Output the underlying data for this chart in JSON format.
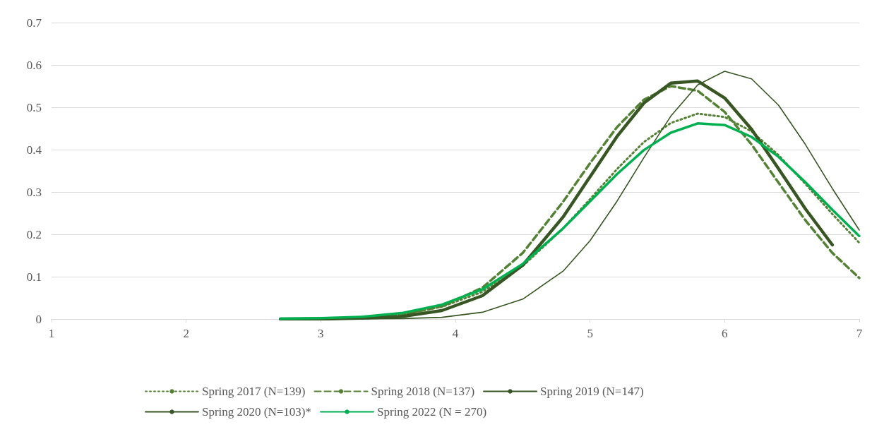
{
  "chart_data": {
    "type": "line",
    "xlim": [
      1,
      7
    ],
    "xticks": [
      1,
      2,
      3,
      4,
      5,
      6,
      7
    ],
    "ylim": [
      0,
      0.7
    ],
    "yticks": [
      0,
      0.1,
      0.2,
      0.3,
      0.4,
      0.5,
      0.6,
      0.7
    ],
    "grid": "y",
    "legend": "bottom",
    "marker": "none",
    "series": [
      {
        "name": "Spring 2017 (N=139)",
        "color": "#548235",
        "line_style": "dotted",
        "x": [
          2.7,
          3,
          3.3,
          3.6,
          3.9,
          4.2,
          4.5,
          4.8,
          5,
          5.2,
          5.4,
          5.6,
          5.8,
          6,
          6.2,
          6.4,
          6.6,
          6.8,
          7
        ],
        "values": [
          0,
          0.001,
          0.004,
          0.011,
          0.029,
          0.064,
          0.125,
          0.214,
          0.283,
          0.354,
          0.418,
          0.463,
          0.485,
          0.477,
          0.443,
          0.387,
          0.319,
          0.248,
          0.18
        ]
      },
      {
        "name": "Spring 2018 (N=137)",
        "color": "#548235",
        "line_style": "dashed",
        "x": [
          2.7,
          3,
          3.3,
          3.6,
          3.9,
          4.2,
          4.5,
          4.8,
          5,
          5.2,
          5.4,
          5.6,
          5.8,
          6,
          6.2,
          6.4,
          6.6,
          6.8,
          7
        ],
        "values": [
          0,
          0.001,
          0.003,
          0.01,
          0.03,
          0.074,
          0.156,
          0.277,
          0.368,
          0.453,
          0.518,
          0.55,
          0.539,
          0.489,
          0.412,
          0.322,
          0.233,
          0.156,
          0.097
        ]
      },
      {
        "name": "Spring 2019 (N=147)",
        "color": "#375623",
        "line_style": "solid",
        "x": [
          3,
          3.3,
          3.6,
          3.9,
          4.2,
          4.5,
          4.8,
          5,
          5.2,
          5.4,
          5.6,
          5.8,
          6,
          6.2,
          6.4,
          6.6,
          6.8,
          7
        ],
        "values": [
          0,
          0,
          0.001,
          0.004,
          0.016,
          0.047,
          0.113,
          0.185,
          0.278,
          0.381,
          0.479,
          0.553,
          0.585,
          0.567,
          0.505,
          0.412,
          0.308,
          0.21
        ]
      },
      {
        "name": "Spring 2020 (N=103)*",
        "color": "#375623",
        "line_style": "solid",
        "x": [
          2.7,
          3,
          3.3,
          3.6,
          3.9,
          4.2,
          4.5,
          4.8,
          5,
          5.2,
          5.4,
          5.6,
          5.8,
          6,
          6.2,
          6.4,
          6.6,
          6.8
        ],
        "values": [
          0,
          0,
          0.002,
          0.006,
          0.02,
          0.055,
          0.127,
          0.241,
          0.336,
          0.431,
          0.51,
          0.557,
          0.562,
          0.522,
          0.448,
          0.355,
          0.26,
          0.175
        ]
      },
      {
        "name": "Spring 2022 (N = 270)",
        "color": "#00b050",
        "line_style": "solid",
        "x": [
          2.7,
          3,
          3.3,
          3.6,
          3.9,
          4.2,
          4.5,
          4.8,
          5,
          5.2,
          5.4,
          5.6,
          5.8,
          6,
          6.2,
          6.4,
          6.6,
          6.8,
          7
        ],
        "values": [
          0.001,
          0.002,
          0.005,
          0.014,
          0.034,
          0.07,
          0.13,
          0.214,
          0.278,
          0.342,
          0.399,
          0.44,
          0.462,
          0.458,
          0.43,
          0.383,
          0.323,
          0.258,
          0.196
        ]
      }
    ]
  }
}
